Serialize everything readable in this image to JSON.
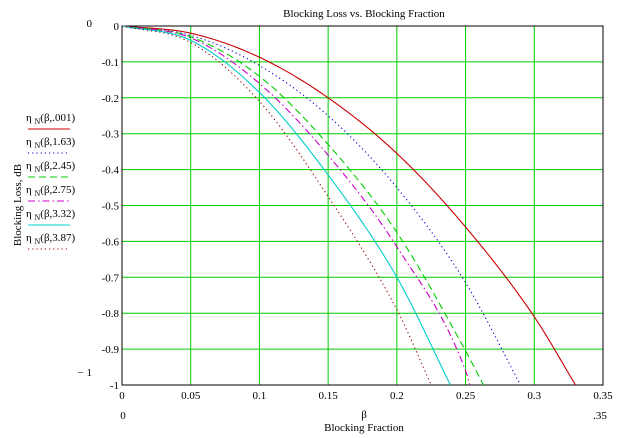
{
  "chart_data": {
    "type": "line",
    "title": "Blocking Loss vs. Blocking Fraction",
    "xlabel_symbol": "β",
    "xlabel": "Blocking Fraction",
    "ylabel": "Blocking Loss, dB",
    "xlim": [
      0,
      0.35
    ],
    "ylim": [
      -1,
      0
    ],
    "x_ticks": [
      0,
      0.05,
      0.1,
      0.15,
      0.2,
      0.25,
      0.3,
      0.35
    ],
    "x_tick_labels": [
      "0",
      "0.05",
      "0.1",
      "0.15",
      "0.2",
      "0.25",
      "0.3",
      "0.35"
    ],
    "y_ticks": [
      0,
      -0.1,
      -0.2,
      -0.3,
      -0.4,
      -0.5,
      -0.6,
      -0.7,
      -0.8,
      -0.9,
      -1
    ],
    "y_tick_labels": [
      "0",
      "-0.1",
      "-0.2",
      "-0.3",
      "-0.4",
      "-0.5",
      "-0.6",
      "-0.7",
      "-0.8",
      "-0.9",
      "-1"
    ],
    "y_range_labels": {
      "top": "0",
      "bottom": "− 1"
    },
    "x_range_labels": {
      "left": "0",
      "right": ".35"
    },
    "grid": true,
    "grid_color": "#00cc00",
    "legend_position": "left",
    "series": [
      {
        "name": "η N(β,.001)",
        "name_main": "η",
        "name_sub": "N",
        "name_args": "(β,.001)",
        "color": "#cc0000",
        "dash": "solid",
        "x": [
          0,
          0.05,
          0.1,
          0.15,
          0.2,
          0.25,
          0.3,
          0.33
        ],
        "y": [
          0,
          -0.02,
          -0.087,
          -0.2,
          -0.355,
          -0.56,
          -0.81,
          -1.0
        ]
      },
      {
        "name": "η N(β,1.63)",
        "name_main": "η",
        "name_sub": "N",
        "name_args": "(β,1.63)",
        "color": "#0000cc",
        "dash": "dot",
        "x": [
          0,
          0.05,
          0.1,
          0.15,
          0.2,
          0.25,
          0.29
        ],
        "y": [
          0,
          -0.026,
          -0.11,
          -0.25,
          -0.45,
          -0.715,
          -1.0
        ]
      },
      {
        "name": "η N(β,2.45)",
        "name_main": "η",
        "name_sub": "N",
        "name_args": "(β,2.45)",
        "color": "#00cc00",
        "dash": "dash",
        "x": [
          0,
          0.05,
          0.1,
          0.15,
          0.2,
          0.25,
          0.263
        ],
        "y": [
          0,
          -0.03,
          -0.14,
          -0.33,
          -0.575,
          -0.905,
          -1.0
        ]
      },
      {
        "name": "η N(β,2.75)",
        "name_main": "η",
        "name_sub": "N",
        "name_args": "(β,2.75)",
        "color": "#cc00cc",
        "dash": "dashdot",
        "x": [
          0,
          0.05,
          0.1,
          0.15,
          0.2,
          0.25,
          0.253
        ],
        "y": [
          0,
          -0.033,
          -0.16,
          -0.36,
          -0.615,
          -0.96,
          -1.0
        ]
      },
      {
        "name": "η N(β,3.32)",
        "name_main": "η",
        "name_sub": "N",
        "name_args": "(β,3.32)",
        "color": "#00cccc",
        "dash": "solid",
        "x": [
          0,
          0.05,
          0.1,
          0.15,
          0.2,
          0.239
        ],
        "y": [
          0,
          -0.04,
          -0.185,
          -0.415,
          -0.7,
          -1.0
        ]
      },
      {
        "name": "η N(β,3.87)",
        "name_main": "η",
        "name_sub": "N",
        "name_args": "(β,3.87)",
        "color": "#990000",
        "dash": "dot",
        "x": [
          0,
          0.05,
          0.1,
          0.15,
          0.2,
          0.225
        ],
        "y": [
          0,
          -0.046,
          -0.21,
          -0.475,
          -0.79,
          -1.0
        ]
      }
    ]
  }
}
